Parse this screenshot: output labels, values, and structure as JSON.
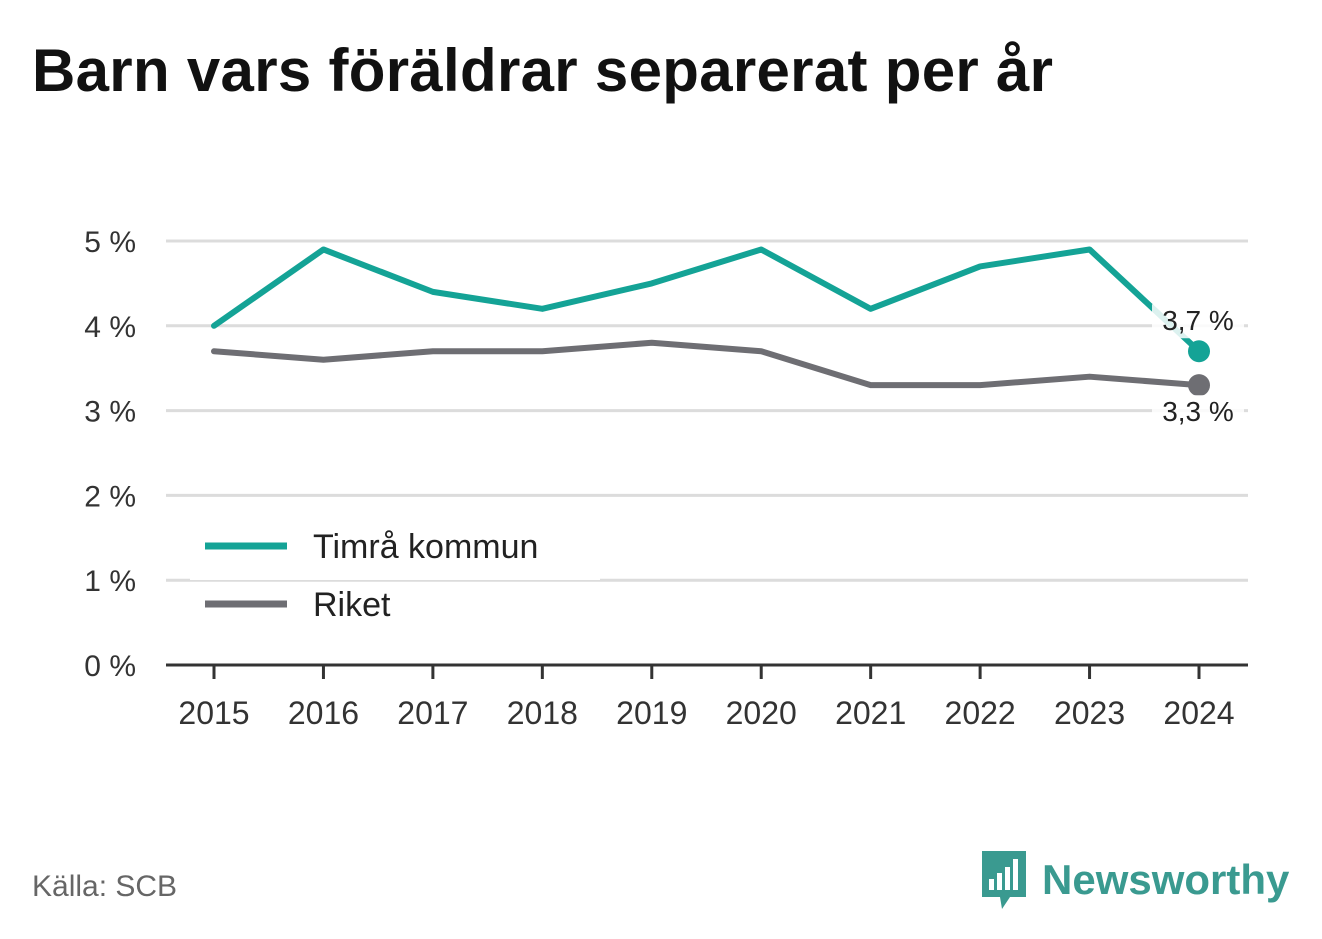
{
  "title": "Barn vars föräldrar separerat per år",
  "source": "Källa: SCB",
  "brand": {
    "name": "Newsworthy",
    "icon": "newsworthy-logo-icon",
    "color": "#3a9a90"
  },
  "chart_data": {
    "type": "line",
    "title": "Barn vars föräldrar separerat per år",
    "xlabel": "",
    "ylabel": "",
    "x": [
      "2015",
      "2016",
      "2017",
      "2018",
      "2019",
      "2020",
      "2021",
      "2022",
      "2023",
      "2024"
    ],
    "ylim": [
      0,
      5
    ],
    "y_ticks": [
      {
        "value": 0,
        "label": "0 %"
      },
      {
        "value": 1,
        "label": "1 %"
      },
      {
        "value": 2,
        "label": "2 %"
      },
      {
        "value": 3,
        "label": "3 %"
      },
      {
        "value": 4,
        "label": "4 %"
      },
      {
        "value": 5,
        "label": "5 %"
      }
    ],
    "grid": true,
    "legend_position": "bottom-left",
    "series": [
      {
        "name": "Timrå kommun",
        "color": "#14a396",
        "values": [
          4.0,
          4.9,
          4.4,
          4.2,
          4.5,
          4.9,
          4.2,
          4.7,
          4.9,
          3.7
        ],
        "end_label": "3,7 %"
      },
      {
        "name": "Riket",
        "color": "#6e6e73",
        "values": [
          3.7,
          3.6,
          3.7,
          3.7,
          3.8,
          3.7,
          3.3,
          3.3,
          3.4,
          3.3
        ],
        "end_label": "3,3 %"
      }
    ]
  }
}
